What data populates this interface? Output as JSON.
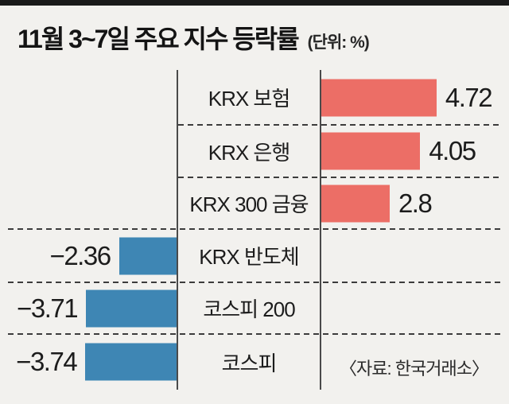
{
  "header": {
    "title": "11월 3~7일 주요 지수 등락률",
    "unit_note": "(단위: %)"
  },
  "colors": {
    "positive_bar": "#ec6e66",
    "negative_bar": "#3e86b4",
    "background": "#f2f1ee",
    "rule": "#1a1a1a",
    "line": "#4a4a4a",
    "text": "#1c1c1c"
  },
  "chart_data": {
    "type": "bar",
    "orientation": "horizontal",
    "title": "11월 3~7일 주요 지수 등락률",
    "unit": "%",
    "categories": [
      "KRX 보험",
      "KRX 은행",
      "KRX 300 금융",
      "KRX 반도체",
      "코스피 200",
      "코스피"
    ],
    "values": [
      4.72,
      4.05,
      2.8,
      -2.36,
      -3.71,
      -3.74
    ],
    "value_labels": [
      "4.72",
      "4.05",
      "2.8",
      "−2.36",
      "−3.71",
      "−3.74"
    ],
    "positive_color": "#ec6e66",
    "negative_color": "#3e86b4",
    "grid": "off",
    "legend": "none",
    "source": "〈자료: 한국거래소〉"
  }
}
